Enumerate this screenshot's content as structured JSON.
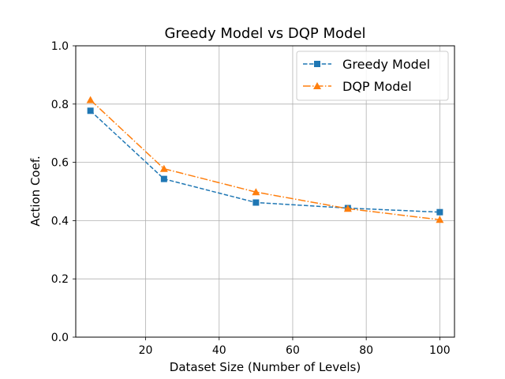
{
  "chart_data": {
    "type": "line",
    "title": "Greedy Model vs DQP Model",
    "xlabel": "Dataset Size (Number of Levels)",
    "ylabel": "Action Coef.",
    "xlim": [
      1,
      104
    ],
    "ylim": [
      0.0,
      1.0
    ],
    "xticks": [
      20,
      40,
      60,
      80,
      100
    ],
    "yticks": [
      0.0,
      0.2,
      0.4,
      0.6,
      0.8,
      1.0
    ],
    "xtick_labels": [
      "20",
      "40",
      "60",
      "80",
      "100"
    ],
    "ytick_labels": [
      "0.0",
      "0.2",
      "0.4",
      "0.6",
      "0.8",
      "1.0"
    ],
    "grid": true,
    "legend_position": "top-right",
    "x": [
      5,
      25,
      50,
      75,
      100
    ],
    "series": [
      {
        "name": "Greedy Model",
        "values": [
          0.777,
          0.543,
          0.462,
          0.443,
          0.429
        ],
        "color": "#1f77b4",
        "marker": "square",
        "linestyle": "dashed"
      },
      {
        "name": "DQP Model",
        "values": [
          0.814,
          0.578,
          0.498,
          0.441,
          0.403
        ],
        "color": "#ff7f0e",
        "marker": "triangle",
        "linestyle": "dashdot"
      }
    ]
  }
}
